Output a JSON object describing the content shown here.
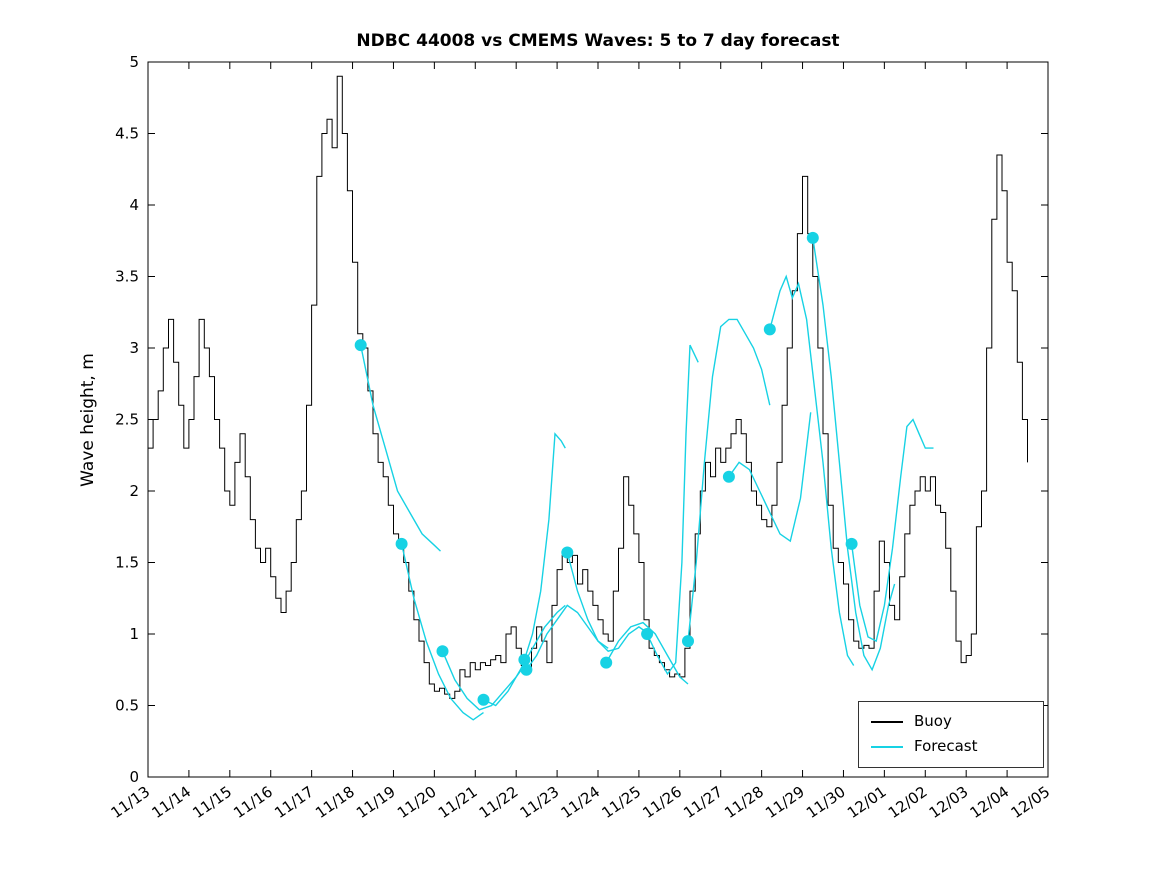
{
  "chart_data": {
    "type": "line",
    "title": "NDBC 44008 vs CMEMS Waves: 5 to 7 day forecast",
    "xlabel": "",
    "ylabel": "Wave height, m",
    "ylim": [
      0,
      5
    ],
    "xlim_days": [
      0,
      22
    ],
    "grid": false,
    "x_tick_labels": [
      "11/13",
      "11/14",
      "11/15",
      "11/16",
      "11/17",
      "11/18",
      "11/19",
      "11/20",
      "11/21",
      "11/22",
      "11/23",
      "11/24",
      "11/25",
      "11/26",
      "11/27",
      "11/28",
      "11/29",
      "11/30",
      "12/01",
      "12/02",
      "12/03",
      "12/04",
      "12/05"
    ],
    "y_ticks": [
      0,
      0.5,
      1,
      1.5,
      2,
      2.5,
      3,
      3.5,
      4,
      4.5,
      5
    ],
    "y_tick_labels": [
      "0",
      "0.5",
      "1",
      "1.5",
      "2",
      "2.5",
      "3",
      "3.5",
      "4",
      "4.5",
      "5"
    ],
    "legend": {
      "position": "bottom-right",
      "entries": [
        {
          "label": "Buoy",
          "color": "#000000"
        },
        {
          "label": "Forecast",
          "color": "#17d2e4"
        }
      ]
    },
    "series": [
      {
        "name": "Buoy",
        "style": "step-line",
        "color": "#000000",
        "t0": 0,
        "dt": 0.125,
        "values": [
          2.3,
          2.5,
          2.7,
          3.0,
          3.2,
          2.9,
          2.6,
          2.3,
          2.5,
          2.8,
          3.2,
          3.0,
          2.8,
          2.5,
          2.3,
          2.0,
          1.9,
          2.2,
          2.4,
          2.1,
          1.8,
          1.6,
          1.5,
          1.6,
          1.4,
          1.25,
          1.15,
          1.3,
          1.5,
          1.8,
          2.0,
          2.6,
          3.3,
          4.2,
          4.5,
          4.6,
          4.4,
          4.9,
          4.5,
          4.1,
          3.6,
          3.1,
          3.0,
          2.7,
          2.4,
          2.2,
          2.1,
          1.9,
          1.7,
          1.6,
          1.5,
          1.3,
          1.1,
          0.95,
          0.8,
          0.65,
          0.6,
          0.62,
          0.58,
          0.55,
          0.6,
          0.75,
          0.7,
          0.8,
          0.75,
          0.8,
          0.78,
          0.82,
          0.85,
          0.8,
          1.0,
          1.05,
          0.9,
          0.78,
          0.75,
          0.9,
          1.05,
          0.95,
          0.8,
          1.2,
          1.45,
          1.55,
          1.5,
          1.55,
          1.35,
          1.45,
          1.3,
          1.2,
          1.1,
          1.0,
          0.95,
          1.3,
          1.6,
          2.1,
          1.9,
          1.7,
          1.5,
          1.1,
          0.9,
          0.85,
          0.8,
          0.75,
          0.7,
          0.72,
          0.7,
          0.9,
          1.3,
          1.7,
          2.0,
          2.2,
          2.1,
          2.3,
          2.2,
          2.3,
          2.4,
          2.5,
          2.4,
          2.2,
          2.0,
          1.9,
          1.8,
          1.75,
          1.9,
          2.2,
          2.6,
          3.0,
          3.4,
          3.8,
          4.2,
          3.8,
          3.5,
          3.0,
          2.4,
          1.9,
          1.6,
          1.5,
          1.35,
          1.1,
          0.95,
          0.9,
          0.92,
          0.9,
          1.3,
          1.65,
          1.5,
          1.2,
          1.1,
          1.4,
          1.7,
          1.9,
          2.0,
          2.1,
          2.0,
          2.1,
          1.9,
          1.85,
          1.6,
          1.3,
          0.95,
          0.8,
          0.85,
          1.0,
          1.75,
          2.0,
          3.0,
          3.9,
          4.35,
          4.1,
          3.6,
          3.4,
          2.9,
          2.5,
          2.2
        ]
      },
      {
        "name": "Forecast",
        "style": "multi-segment-line",
        "color": "#17d2e4",
        "marker": "filled-circle-at-segment-start",
        "marker_radius_px": 6,
        "segments": [
          {
            "t": [
              5.2,
              5.5,
              5.8,
              6.1,
              6.4,
              6.7,
              7.0,
              7.15
            ],
            "h": [
              3.02,
              2.6,
              2.3,
              2.0,
              1.85,
              1.7,
              1.62,
              1.58
            ]
          },
          {
            "t": [
              6.2,
              6.5,
              6.8,
              7.1,
              7.4,
              7.7,
              7.95,
              8.2
            ],
            "h": [
              1.63,
              1.25,
              0.95,
              0.72,
              0.55,
              0.45,
              0.4,
              0.45
            ]
          },
          {
            "t": [
              7.2,
              7.5,
              7.8,
              8.1,
              8.4,
              8.7,
              9.0,
              9.2
            ],
            "h": [
              0.88,
              0.68,
              0.55,
              0.47,
              0.5,
              0.6,
              0.7,
              0.78
            ]
          },
          {
            "t": [
              8.2,
              8.5,
              8.8,
              9.1,
              9.4,
              9.7,
              10.0,
              10.2
            ],
            "h": [
              0.54,
              0.5,
              0.6,
              0.75,
              0.9,
              1.05,
              1.15,
              1.2
            ]
          },
          {
            "t": [
              9.2,
              9.4,
              9.6,
              9.8,
              9.95,
              10.1,
              10.2
            ],
            "h": [
              0.82,
              1.0,
              1.3,
              1.8,
              2.4,
              2.35,
              2.3
            ]
          },
          {
            "t": [
              9.25,
              9.5,
              9.75,
              10.0,
              10.25,
              10.5,
              10.75,
              11.0,
              11.25
            ],
            "h": [
              0.75,
              0.85,
              1.0,
              1.1,
              1.2,
              1.15,
              1.05,
              0.95,
              0.9
            ]
          },
          {
            "t": [
              10.25,
              10.5,
              10.75,
              11.0,
              11.25,
              11.5,
              11.75,
              12.0,
              12.25
            ],
            "h": [
              1.57,
              1.3,
              1.1,
              0.95,
              0.88,
              0.9,
              1.0,
              1.05,
              1.0
            ]
          },
          {
            "t": [
              11.2,
              11.5,
              11.8,
              12.1,
              12.4,
              12.7,
              13.0,
              13.2
            ],
            "h": [
              0.8,
              0.95,
              1.05,
              1.08,
              1.0,
              0.85,
              0.7,
              0.65
            ]
          },
          {
            "t": [
              12.2,
              12.45,
              12.7,
              12.9,
              13.05,
              13.15,
              13.25,
              13.45
            ],
            "h": [
              1.0,
              0.85,
              0.72,
              0.8,
              1.5,
              2.4,
              3.02,
              2.9
            ]
          },
          {
            "t": [
              13.2,
              13.4,
              13.6,
              13.8,
              14.0,
              14.2,
              14.4,
              14.6,
              14.8,
              15.0,
              15.2
            ],
            "h": [
              0.95,
              1.5,
              2.2,
              2.8,
              3.15,
              3.2,
              3.2,
              3.1,
              3.0,
              2.85,
              2.6
            ]
          },
          {
            "t": [
              14.2,
              14.45,
              14.7,
              14.95,
              15.2,
              15.45,
              15.7,
              15.95,
              16.2
            ],
            "h": [
              2.1,
              2.2,
              2.15,
              2.0,
              1.85,
              1.7,
              1.65,
              1.95,
              2.55
            ]
          },
          {
            "t": [
              15.2,
              15.45,
              15.6,
              15.75,
              15.9,
              16.1,
              16.3,
              16.5,
              16.7,
              16.9,
              17.1,
              17.25
            ],
            "h": [
              3.13,
              3.4,
              3.5,
              3.35,
              3.45,
              3.2,
              2.7,
              2.2,
              1.6,
              1.15,
              0.85,
              0.78
            ]
          },
          {
            "t": [
              16.25,
              16.5,
              16.7,
              16.9,
              17.1,
              17.3,
              17.5,
              17.7,
              17.9,
              18.1,
              18.25
            ],
            "h": [
              3.77,
              3.3,
              2.8,
              2.2,
              1.6,
              1.15,
              0.85,
              0.75,
              0.9,
              1.2,
              1.35
            ]
          },
          {
            "t": [
              17.2,
              17.4,
              17.6,
              17.8,
              18.0,
              18.2,
              18.4,
              18.55,
              18.7,
              18.85,
              19.0,
              19.2
            ],
            "h": [
              1.63,
              1.2,
              0.98,
              0.95,
              1.2,
              1.6,
              2.1,
              2.45,
              2.5,
              2.4,
              2.3,
              2.3
            ]
          }
        ]
      }
    ]
  }
}
